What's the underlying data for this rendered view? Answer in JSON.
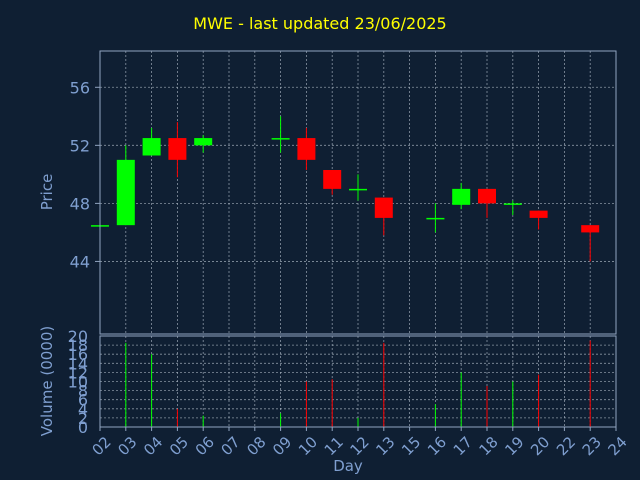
{
  "colors": {
    "background": "#0f1f33",
    "axis": "#90a4c0",
    "grid": "#b0bcc8",
    "title": "#ffff00",
    "label": "#7f9fd0",
    "tick": "#7f9fd0",
    "up": "#00ff00",
    "down": "#ff0000"
  },
  "chart_data": {
    "type": "candlestick",
    "title": "MWE - last updated 23/06/2025",
    "xlabel": "Day",
    "price_ylabel": "Price",
    "volume_ylabel": "Volume (0000)",
    "price_ylim": [
      39,
      58.5
    ],
    "price_yticks": [
      44,
      48,
      52,
      56
    ],
    "volume_ylim": [
      0,
      20
    ],
    "volume_yticks": [
      0,
      2,
      4,
      6,
      8,
      10,
      12,
      14,
      16,
      18,
      20
    ],
    "x_labels": [
      "02",
      "03",
      "04",
      "05",
      "06",
      "07",
      "08",
      "09",
      "10",
      "11",
      "12",
      "13",
      "15",
      "16",
      "17",
      "18",
      "19",
      "20",
      "22",
      "23",
      "24"
    ],
    "grid": true,
    "candles": [
      {
        "day": "02",
        "open": 46.5,
        "high": 46.5,
        "low": 46.5,
        "close": 46.5,
        "volume": 0
      },
      {
        "day": "03",
        "open": 46.5,
        "high": 52.0,
        "low": 46.5,
        "close": 51.0,
        "volume": 18.5
      },
      {
        "day": "04",
        "open": 51.3,
        "high": 53.2,
        "low": 51.3,
        "close": 52.5,
        "volume": 16.0
      },
      {
        "day": "05",
        "open": 52.5,
        "high": 53.6,
        "low": 49.8,
        "close": 51.0,
        "volume": 4.0
      },
      {
        "day": "06",
        "open": 52.0,
        "high": 52.7,
        "low": 51.5,
        "close": 52.5,
        "volume": 2.5
      },
      {
        "day": "09",
        "open": 52.4,
        "high": 54.0,
        "low": 51.5,
        "close": 52.5,
        "volume": 3.0
      },
      {
        "day": "10",
        "open": 52.5,
        "high": 53.2,
        "low": 50.3,
        "close": 51.0,
        "volume": 10.0
      },
      {
        "day": "11",
        "open": 50.3,
        "high": 50.3,
        "low": 48.6,
        "close": 49.0,
        "volume": 10.5
      },
      {
        "day": "12",
        "open": 48.9,
        "high": 50.0,
        "low": 48.2,
        "close": 49.0,
        "volume": 2.0
      },
      {
        "day": "13",
        "open": 48.4,
        "high": 48.4,
        "low": 45.8,
        "close": 47.0,
        "volume": 18.5
      },
      {
        "day": "16",
        "open": 46.9,
        "high": 48.0,
        "low": 46.0,
        "close": 47.0,
        "volume": 5.0
      },
      {
        "day": "17",
        "open": 47.9,
        "high": 49.4,
        "low": 47.6,
        "close": 49.0,
        "volume": 12.0
      },
      {
        "day": "18",
        "open": 49.0,
        "high": 49.0,
        "low": 47.0,
        "close": 48.0,
        "volume": 9.0
      },
      {
        "day": "19",
        "open": 47.9,
        "high": 48.2,
        "low": 47.2,
        "close": 48.0,
        "volume": 10.0
      },
      {
        "day": "20",
        "open": 47.5,
        "high": 47.5,
        "low": 46.2,
        "close": 47.0,
        "volume": 11.5
      },
      {
        "day": "23",
        "open": 46.5,
        "high": 46.5,
        "low": 44.0,
        "close": 46.0,
        "volume": 19.0
      }
    ]
  }
}
